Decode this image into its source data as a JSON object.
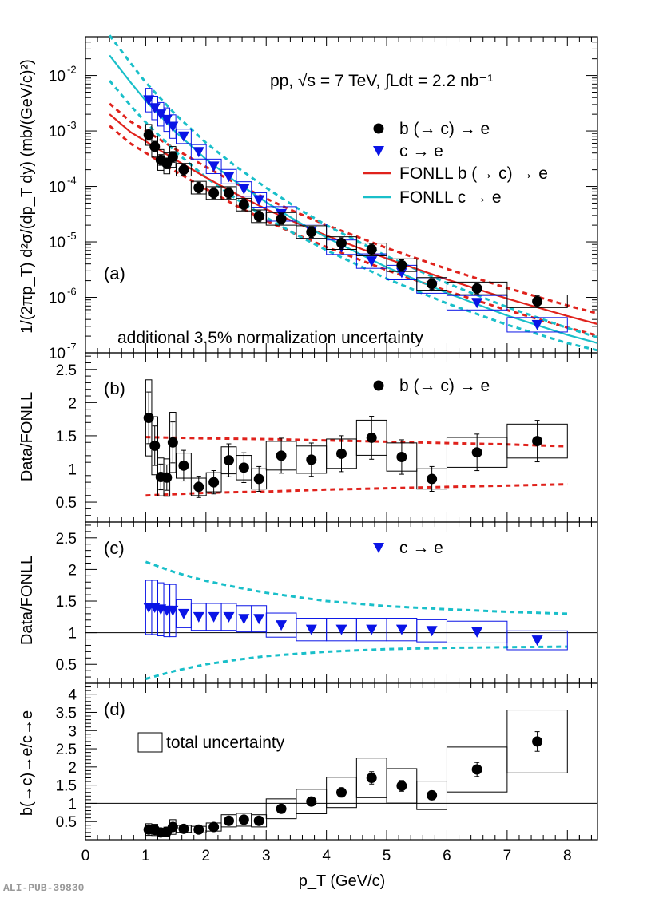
{
  "chart_data": [
    {
      "panel": "(a)",
      "type": "scatter",
      "ylabel": "1/(2πp_T) d²σ/(dp_T dy) (mb/(GeV/c)²)",
      "yscale": "log",
      "ylim": [
        1e-07,
        0.05
      ],
      "xlim": [
        0,
        8.5
      ],
      "yticks": [
        "10^-7",
        "10^-6",
        "10^-5",
        "10^-4",
        "10^-3",
        "10^-2"
      ],
      "annotations": [
        "pp, √s = 7 TeV, ∫Ldt = 2.2 nb⁻¹",
        "additional 3.5% normalization uncertainty"
      ],
      "legend": [
        "b (→ c) → e",
        "c → e",
        "FONLL b (→ c) → e",
        "FONLL c → e"
      ],
      "series": [
        {
          "name": "b (→ c) → e",
          "marker": "circle",
          "x": [
            1.05,
            1.15,
            1.25,
            1.35,
            1.45,
            1.63,
            1.88,
            2.13,
            2.38,
            2.63,
            2.88,
            3.25,
            3.75,
            4.25,
            4.75,
            5.25,
            5.75,
            6.5,
            7.5
          ],
          "y": [
            0.00085,
            0.00052,
            0.0003,
            0.00026,
            0.00034,
            0.0002,
            9.5e-05,
            7.6e-05,
            7.6e-05,
            4.7e-05,
            2.9e-05,
            2.6e-05,
            1.5e-05,
            9.5e-06,
            7.3e-06,
            3.8e-06,
            1.75e-06,
            1.45e-06,
            8.5e-07
          ]
        },
        {
          "name": "c → e",
          "marker": "triangle-down",
          "x": [
            1.05,
            1.15,
            1.25,
            1.35,
            1.45,
            1.63,
            1.88,
            2.13,
            2.38,
            2.63,
            2.88,
            3.25,
            3.75,
            4.25,
            4.75,
            5.25,
            5.75,
            6.5,
            7.5
          ],
          "y": [
            0.0036,
            0.0026,
            0.002,
            0.0016,
            0.0012,
            0.0008,
            0.00042,
            0.00023,
            0.00015,
            9e-05,
            5.7e-05,
            3.2e-05,
            1.55e-05,
            8e-06,
            4.5e-06,
            2.8e-06,
            1.6e-06,
            8e-07,
            3.2e-07
          ]
        },
        {
          "name": "FONLL b (→ c) → e",
          "color": "#e0221c",
          "x": [
            0.4,
            0.75,
            1,
            1.5,
            2,
            2.5,
            3,
            3.5,
            4,
            5,
            6,
            7,
            8,
            8.5
          ],
          "y": [
            0.002,
            0.00095,
            0.00065,
            0.0003,
            0.000145,
            7.3e-05,
            3.9e-05,
            2.2e-05,
            1.3e-05,
            5e-06,
            2.1e-06,
            9.5e-07,
            4.6e-07,
            3.3e-07
          ]
        },
        {
          "name": "FONLL c → e",
          "color": "#19bfc9",
          "x": [
            0.4,
            0.75,
            1,
            1.5,
            2,
            2.5,
            3,
            3.5,
            4,
            5,
            6,
            7,
            8,
            8.5
          ],
          "y": [
            0.023,
            0.0075,
            0.0035,
            0.00095,
            0.00031,
            0.00012,
            5.2e-05,
            2.4e-05,
            1.2e-05,
            3.5e-06,
            1.2e-06,
            4.7e-07,
            2.1e-07,
            1.5e-07
          ]
        }
      ]
    },
    {
      "panel": "(b)",
      "type": "scatter",
      "ylabel": "Data/FONLL",
      "ylim": [
        0.2,
        2.75
      ],
      "yticks": [
        "0.5",
        "1",
        "1.5",
        "2",
        "2.5"
      ],
      "legend": [
        "b (→ c) → e"
      ],
      "series": [
        {
          "name": "b (→ c) → e",
          "x": [
            1.05,
            1.15,
            1.25,
            1.35,
            1.45,
            1.63,
            1.88,
            2.13,
            2.38,
            2.63,
            2.88,
            3.25,
            3.75,
            4.25,
            4.75,
            5.25,
            5.75,
            6.5,
            7.5
          ],
          "y": [
            1.77,
            1.35,
            0.88,
            0.87,
            1.4,
            1.05,
            0.73,
            0.8,
            1.13,
            1.02,
            0.85,
            1.2,
            1.14,
            1.23,
            1.47,
            1.18,
            0.85,
            1.25,
            1.42
          ]
        }
      ],
      "band_upper": {
        "x": [
          1,
          2,
          3,
          4,
          5,
          6,
          7,
          8
        ],
        "y": [
          1.48,
          1.46,
          1.45,
          1.43,
          1.41,
          1.39,
          1.37,
          1.34
        ]
      },
      "band_lower": {
        "x": [
          1,
          2,
          3,
          4,
          5,
          6,
          7,
          8
        ],
        "y": [
          0.6,
          0.64,
          0.66,
          0.69,
          0.71,
          0.73,
          0.75,
          0.77
        ]
      }
    },
    {
      "panel": "(c)",
      "type": "scatter",
      "ylabel": "Data/FONLL",
      "ylim": [
        0.2,
        2.75
      ],
      "yticks": [
        "0.5",
        "1",
        "1.5",
        "2",
        "2.5"
      ],
      "legend": [
        "c → e"
      ],
      "series": [
        {
          "name": "c → e",
          "x": [
            1.05,
            1.15,
            1.25,
            1.35,
            1.45,
            1.63,
            1.88,
            2.13,
            2.38,
            2.63,
            2.88,
            3.25,
            3.75,
            4.25,
            4.75,
            5.25,
            5.75,
            6.5,
            7.5
          ],
          "y": [
            1.4,
            1.4,
            1.37,
            1.35,
            1.35,
            1.3,
            1.25,
            1.25,
            1.25,
            1.22,
            1.22,
            1.12,
            1.05,
            1.05,
            1.05,
            1.05,
            1.03,
            1.01,
            0.88
          ]
        }
      ],
      "band_upper": {
        "x": [
          1,
          1.5,
          2,
          2.5,
          3,
          4,
          5,
          6,
          7,
          8
        ],
        "y": [
          2.12,
          1.95,
          1.82,
          1.72,
          1.63,
          1.5,
          1.42,
          1.37,
          1.33,
          1.3
        ]
      },
      "band_lower": {
        "x": [
          1,
          1.5,
          2,
          2.5,
          3,
          4,
          5,
          6,
          7,
          8
        ],
        "y": [
          0.27,
          0.4,
          0.5,
          0.57,
          0.63,
          0.7,
          0.74,
          0.76,
          0.77,
          0.78
        ]
      }
    },
    {
      "panel": "(d)",
      "type": "scatter",
      "ylabel": "b(→c)→e/c→e",
      "ylim": [
        0,
        4.3
      ],
      "yticks": [
        "0.5",
        "1",
        "1.5",
        "2",
        "2.5",
        "3",
        "3.5",
        "4"
      ],
      "legend": [
        "total uncertainty"
      ],
      "series": [
        {
          "name": "ratio",
          "x": [
            1.05,
            1.15,
            1.25,
            1.35,
            1.45,
            1.63,
            1.88,
            2.13,
            2.38,
            2.63,
            2.88,
            3.25,
            3.75,
            4.25,
            4.75,
            5.25,
            5.75,
            6.5,
            7.5
          ],
          "y": [
            0.28,
            0.27,
            0.2,
            0.22,
            0.35,
            0.3,
            0.28,
            0.35,
            0.52,
            0.55,
            0.52,
            0.85,
            1.05,
            1.3,
            1.7,
            1.48,
            1.22,
            1.93,
            2.7
          ]
        }
      ]
    }
  ],
  "xaxis": {
    "label": "p_T (GeV/c)",
    "ticks": [
      "0",
      "1",
      "2",
      "3",
      "4",
      "5",
      "6",
      "7",
      "8"
    ],
    "xlim": [
      0,
      8.5
    ]
  },
  "watermark": "ALI-PUB-39830",
  "colors": {
    "black": "#000000",
    "blue": "#0a14e6",
    "red": "#e0221c",
    "cyan": "#19bfc9"
  }
}
